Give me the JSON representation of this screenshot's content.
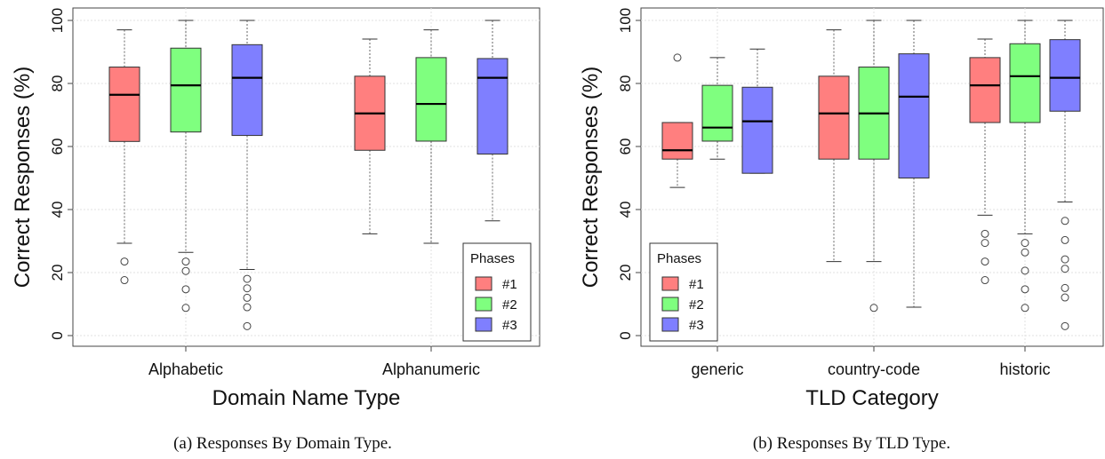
{
  "chart_data": [
    {
      "type": "box",
      "caption": "(a) Responses By Domain Type.",
      "xlabel": "Domain Name Type",
      "ylabel": "Correct Responses (%)",
      "ylim": [
        0,
        100
      ],
      "yticks": [
        0,
        20,
        40,
        60,
        80,
        100
      ],
      "grid": true,
      "legend": {
        "title": "Phases",
        "entries": [
          "#1",
          "#2",
          "#3"
        ],
        "position": "bottom-right"
      },
      "categories": [
        {
          "label": "Alphabetic",
          "boxes": [
            {
              "phase": "#1",
              "whisker_low": 29.3,
              "q1": 61.6,
              "median": 76.4,
              "q3": 85.2,
              "whisker_high": 97.0,
              "outliers": [
                23.5,
                17.6
              ]
            },
            {
              "phase": "#2",
              "whisker_low": 26.4,
              "q1": 64.6,
              "median": 79.4,
              "q3": 91.2,
              "whisker_high": 100,
              "outliers": [
                23.5,
                20.5,
                14.7,
                8.8
              ]
            },
            {
              "phase": "#3",
              "whisker_low": 21.0,
              "q1": 63.5,
              "median": 81.8,
              "q3": 92.3,
              "whisker_high": 100,
              "outliers": [
                18.0,
                15.0,
                12.0,
                9.0,
                3.0
              ]
            }
          ]
        },
        {
          "label": "Alphanumeric",
          "boxes": [
            {
              "phase": "#1",
              "whisker_low": 32.3,
              "q1": 58.8,
              "median": 70.5,
              "q3": 82.3,
              "whisker_high": 94.1,
              "outliers": []
            },
            {
              "phase": "#2",
              "whisker_low": 29.3,
              "q1": 61.7,
              "median": 73.5,
              "q3": 88.2,
              "whisker_high": 97.0,
              "outliers": []
            },
            {
              "phase": "#3",
              "whisker_low": 36.4,
              "q1": 57.6,
              "median": 81.8,
              "q3": 87.9,
              "whisker_high": 100,
              "outliers": []
            }
          ]
        }
      ]
    },
    {
      "type": "box",
      "caption": "(b) Responses By TLD Type.",
      "xlabel": "TLD Category",
      "ylabel": "Correct Responses (%)",
      "ylim": [
        0,
        100
      ],
      "yticks": [
        0,
        20,
        40,
        60,
        80,
        100
      ],
      "grid": true,
      "legend": {
        "title": "Phases",
        "entries": [
          "#1",
          "#2",
          "#3"
        ],
        "position": "bottom-left"
      },
      "categories": [
        {
          "label": "generic",
          "boxes": [
            {
              "phase": "#1",
              "whisker_low": 47.0,
              "q1": 56.0,
              "median": 58.8,
              "q3": 67.6,
              "whisker_high": 67.6,
              "outliers": [
                88.2
              ]
            },
            {
              "phase": "#2",
              "whisker_low": 56.0,
              "q1": 61.7,
              "median": 66.0,
              "q3": 79.4,
              "whisker_high": 88.2,
              "outliers": []
            },
            {
              "phase": "#3",
              "whisker_low": 51.5,
              "q1": 51.5,
              "median": 68.0,
              "q3": 78.8,
              "whisker_high": 90.9,
              "outliers": []
            }
          ]
        },
        {
          "label": "country-code",
          "boxes": [
            {
              "phase": "#1",
              "whisker_low": 23.5,
              "q1": 56.0,
              "median": 70.5,
              "q3": 82.3,
              "whisker_high": 97.0,
              "outliers": []
            },
            {
              "phase": "#2",
              "whisker_low": 23.5,
              "q1": 56.0,
              "median": 70.5,
              "q3": 85.2,
              "whisker_high": 100,
              "outliers": [
                8.8
              ]
            },
            {
              "phase": "#3",
              "whisker_low": 9.0,
              "q1": 50.0,
              "median": 75.8,
              "q3": 89.4,
              "whisker_high": 100,
              "outliers": []
            }
          ]
        },
        {
          "label": "historic",
          "boxes": [
            {
              "phase": "#1",
              "whisker_low": 38.2,
              "q1": 67.6,
              "median": 79.4,
              "q3": 88.2,
              "whisker_high": 94.1,
              "outliers": [
                32.3,
                29.4,
                23.5,
                17.6
              ]
            },
            {
              "phase": "#2",
              "whisker_low": 32.3,
              "q1": 67.6,
              "median": 82.3,
              "q3": 92.6,
              "whisker_high": 100,
              "outliers": [
                29.4,
                26.4,
                20.6,
                14.7,
                8.8
              ]
            },
            {
              "phase": "#3",
              "whisker_low": 42.4,
              "q1": 71.2,
              "median": 81.8,
              "q3": 93.9,
              "whisker_high": 100,
              "outliers": [
                36.4,
                30.3,
                24.2,
                21.2,
                15.1,
                12.1,
                3.0
              ]
            }
          ]
        }
      ]
    }
  ],
  "colors": {
    "phase1": "#ff7f7f",
    "phase2": "#7fff7f",
    "phase3": "#7f7fff",
    "whisker": "#666666",
    "grid": "#e2e2e2"
  }
}
